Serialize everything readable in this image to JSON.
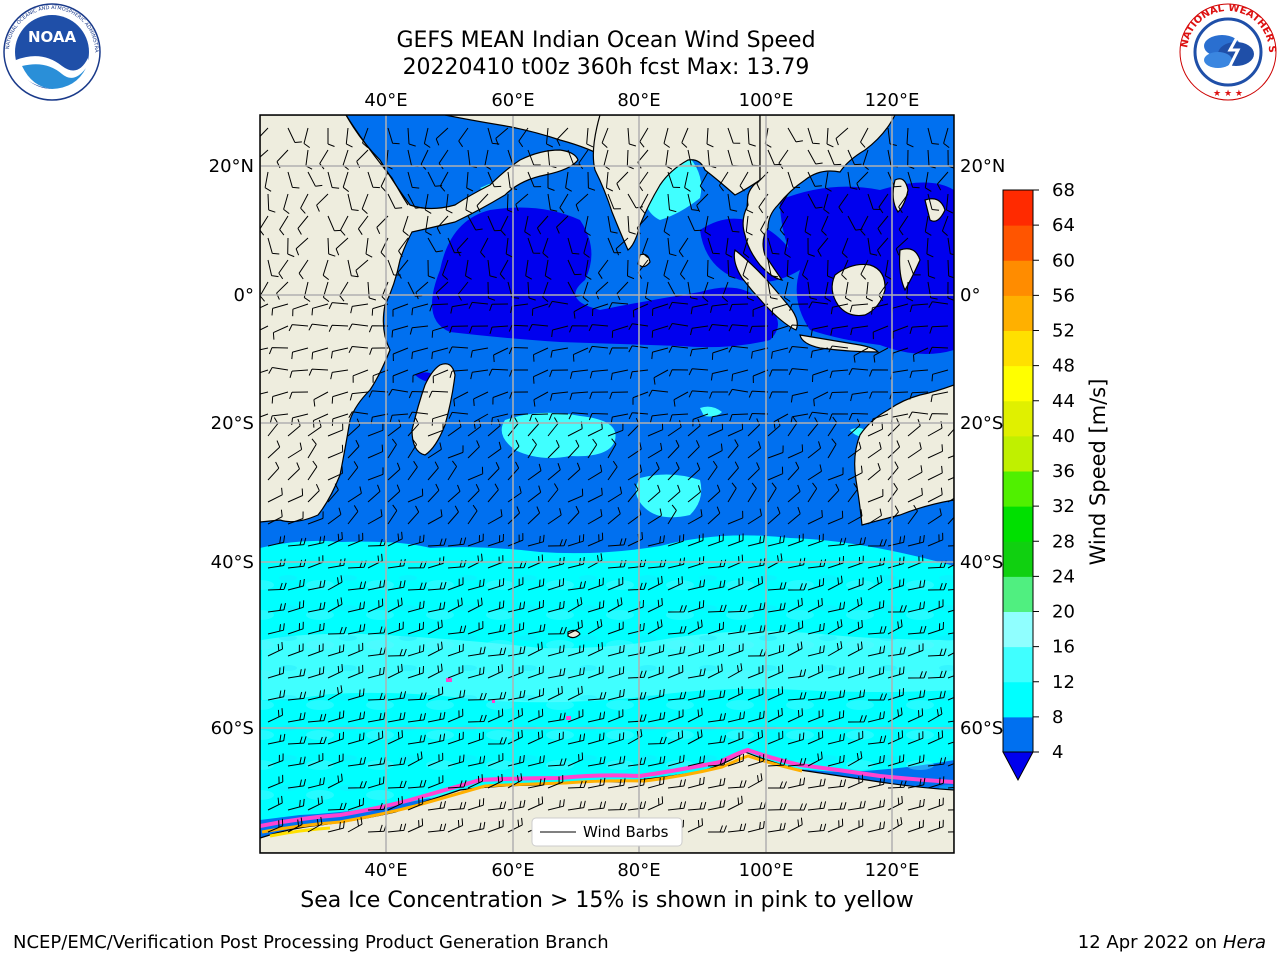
{
  "title": {
    "line1": "GEFS MEAN Indian Ocean Wind Speed",
    "line2": "20220410 t00z 360h fcst   Max: 13.79"
  },
  "logos": {
    "left": "NOAA",
    "right_ring": "NATIONAL WEATHER SERVICE",
    "left_ring": "NATIONAL OCEANIC AND ATMOSPHERIC ADMINISTRATION · U.S. DEPARTMENT OF COMMERCE"
  },
  "map": {
    "lon_labels": [
      "40°E",
      "60°E",
      "80°E",
      "100°E",
      "120°E"
    ],
    "lat_labels": [
      "20°N",
      "0°",
      "20°S",
      "40°S",
      "60°S"
    ],
    "legend_label": "Wind Barbs"
  },
  "colorbar": {
    "label": "Wind Speed [m/s]",
    "ticks": [
      "4",
      "8",
      "12",
      "16",
      "20",
      "24",
      "28",
      "32",
      "36",
      "40",
      "44",
      "48",
      "52",
      "56",
      "60",
      "64",
      "68"
    ],
    "colors": [
      "#0070f0",
      "#00ffff",
      "#40ffff",
      "#90ffff",
      "#50ef80",
      "#10d010",
      "#00e000",
      "#50f000",
      "#c0f000",
      "#e0f000",
      "#ffff00",
      "#ffe000",
      "#ffb000",
      "#ff8c00",
      "#ff5500",
      "#ff2a00",
      "#ff0000"
    ],
    "under_color": "#0000ee"
  },
  "caption": "Sea Ice Concentration > 15% is shown in pink to yellow",
  "footer": {
    "left": "NCEP/EMC/Verification Post Processing Product Generation Branch",
    "right_prefix": "12 Apr 2022 on ",
    "right_host": "Hera"
  }
}
